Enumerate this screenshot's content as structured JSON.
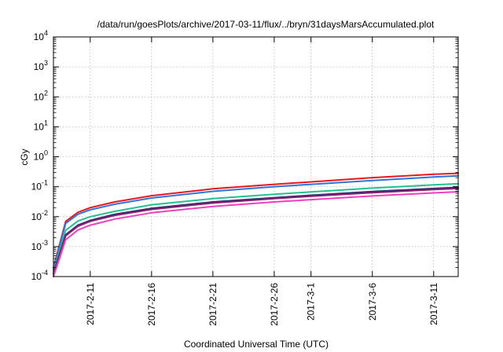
{
  "chart_data": {
    "type": "line",
    "title": "/data/run/goesPlots/archive/2017-03-11/flux/../bryn/31daysMarsAccumulated.plot",
    "xlabel": "Coordinated Universal Time (UTC)",
    "ylabel": "cGy",
    "y_scale": "log",
    "ylim": [
      0.0001,
      10000
    ],
    "y_ticks": [
      {
        "base": "10",
        "exp": "-4",
        "value": 0.0001
      },
      {
        "base": "10",
        "exp": "-3",
        "value": 0.001
      },
      {
        "base": "10",
        "exp": "-2",
        "value": 0.01
      },
      {
        "base": "10",
        "exp": "-1",
        "value": 0.1
      },
      {
        "base": "10",
        "exp": "0",
        "value": 1
      },
      {
        "base": "10",
        "exp": "1",
        "value": 10
      },
      {
        "base": "10",
        "exp": "2",
        "value": 100
      },
      {
        "base": "10",
        "exp": "3",
        "value": 1000
      },
      {
        "base": "10",
        "exp": "4",
        "value": 10000
      }
    ],
    "xlim": [
      "2017-02-08",
      "2017-03-13"
    ],
    "x_ticks": [
      "2017-2-11",
      "2017-2-16",
      "2017-2-21",
      "2017-2-26",
      "2017-3-1",
      "2017-3-6",
      "2017-3-11"
    ],
    "grid": true,
    "x": [
      "2017-02-08",
      "2017-02-09",
      "2017-02-10",
      "2017-02-11",
      "2017-02-13",
      "2017-02-16",
      "2017-02-21",
      "2017-02-26",
      "2017-03-01",
      "2017-03-06",
      "2017-03-11",
      "2017-03-13"
    ],
    "series": [
      {
        "color": "#e8191c",
        "values": [
          0.0002,
          0.007,
          0.014,
          0.02,
          0.031,
          0.05,
          0.085,
          0.12,
          0.145,
          0.2,
          0.26,
          0.28
        ]
      },
      {
        "color": "#2f74e0",
        "values": [
          0.00018,
          0.006,
          0.012,
          0.017,
          0.026,
          0.042,
          0.07,
          0.1,
          0.12,
          0.16,
          0.21,
          0.23
        ]
      },
      {
        "color": "#22c190",
        "values": [
          0.00015,
          0.0035,
          0.0072,
          0.01,
          0.015,
          0.025,
          0.04,
          0.056,
          0.067,
          0.09,
          0.115,
          0.125
        ]
      },
      {
        "color": "#2a2f75",
        "values": [
          0.00013,
          0.0025,
          0.0052,
          0.0075,
          0.012,
          0.019,
          0.031,
          0.043,
          0.052,
          0.069,
          0.087,
          0.095
        ]
      },
      {
        "color": "#8a1e6b",
        "values": [
          0.00012,
          0.0023,
          0.0048,
          0.007,
          0.011,
          0.0175,
          0.0285,
          0.04,
          0.048,
          0.063,
          0.08,
          0.087
        ]
      },
      {
        "color": "#f03fc0",
        "values": [
          0.0001,
          0.0017,
          0.0036,
          0.0052,
          0.0083,
          0.0135,
          0.022,
          0.031,
          0.037,
          0.049,
          0.062,
          0.068
        ]
      }
    ]
  }
}
